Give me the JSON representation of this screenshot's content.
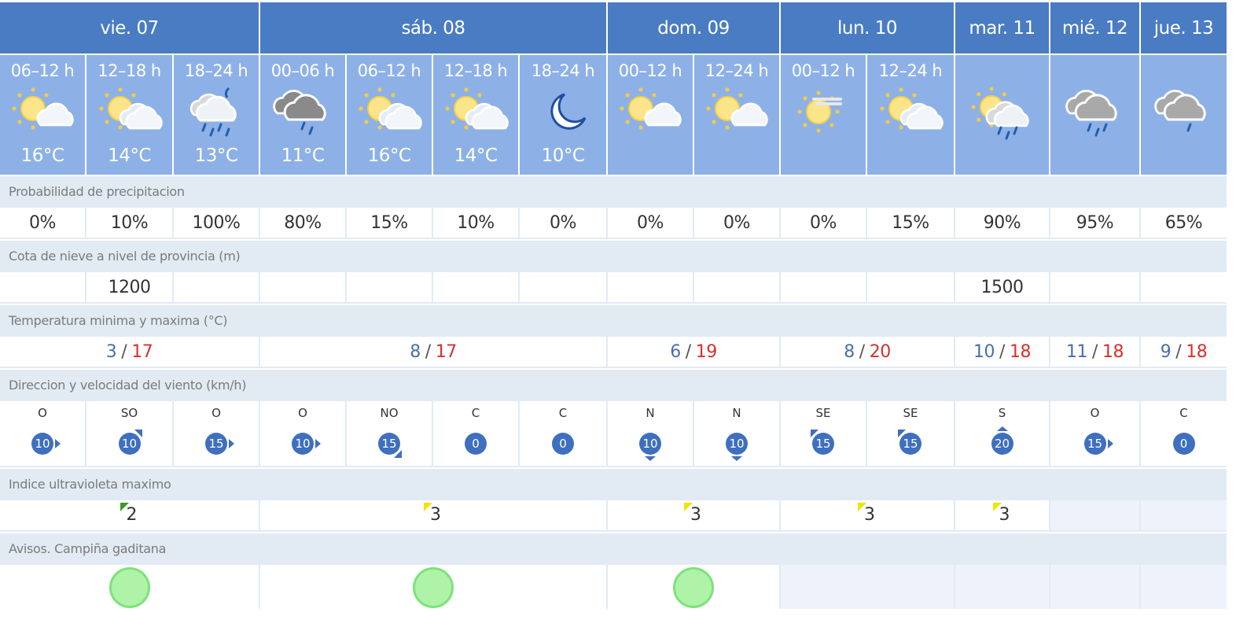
{
  "days": [
    {
      "label": "vie. 07",
      "span": 3,
      "tmin": "3",
      "tmax": "17",
      "uv": "2",
      "uv_color": "#3a9a2a",
      "aviso": true
    },
    {
      "label": "sáb. 08",
      "span": 4,
      "tmin": "8",
      "tmax": "17",
      "uv": "3",
      "uv_color": "#f0e400",
      "aviso": true
    },
    {
      "label": "dom. 09",
      "span": 2,
      "tmin": "6",
      "tmax": "19",
      "uv": "3",
      "uv_color": "#f0e400",
      "aviso": true
    },
    {
      "label": "lun. 10",
      "span": 2,
      "tmin": "8",
      "tmax": "20",
      "uv": "3",
      "uv_color": "#f0e400",
      "aviso": false
    },
    {
      "label": "mar. 11",
      "span": 1,
      "tmin": "10",
      "tmax": "18",
      "uv": "3",
      "uv_color": "#f0e400",
      "aviso": false
    },
    {
      "label": "mié. 12",
      "span": 1,
      "tmin": "11",
      "tmax": "18",
      "uv": null,
      "aviso": false
    },
    {
      "label": "jue. 13",
      "span": 1,
      "tmin": "9",
      "tmax": "18",
      "uv": null,
      "aviso": false
    }
  ],
  "periods": [
    {
      "time": "06–12 h",
      "icon": "sun-cloud",
      "temp": "16°C",
      "precip": "0%",
      "snow": "",
      "wind_dir": "O",
      "wind_speed": "10"
    },
    {
      "time": "12–18 h",
      "icon": "sun-clouds",
      "temp": "14°C",
      "precip": "10%",
      "snow": "1200",
      "wind_dir": "SO",
      "wind_speed": "10"
    },
    {
      "time": "18–24 h",
      "icon": "night-rain-storm",
      "temp": "13°C",
      "precip": "100%",
      "snow": "",
      "wind_dir": "O",
      "wind_speed": "15"
    },
    {
      "time": "00–06 h",
      "icon": "dark-cloud-rain",
      "temp": "11°C",
      "precip": "80%",
      "snow": "",
      "wind_dir": "O",
      "wind_speed": "10"
    },
    {
      "time": "06–12 h",
      "icon": "sun-clouds",
      "temp": "16°C",
      "precip": "15%",
      "snow": "",
      "wind_dir": "NO",
      "wind_speed": "15"
    },
    {
      "time": "12–18 h",
      "icon": "sun-clouds",
      "temp": "14°C",
      "precip": "10%",
      "snow": "",
      "wind_dir": "C",
      "wind_speed": "0"
    },
    {
      "time": "18–24 h",
      "icon": "moon",
      "temp": "10°C",
      "precip": "0%",
      "snow": "",
      "wind_dir": "C",
      "wind_speed": "0"
    },
    {
      "time": "00–12 h",
      "icon": "sun-cloud",
      "temp": "",
      "precip": "0%",
      "snow": "",
      "wind_dir": "N",
      "wind_speed": "10"
    },
    {
      "time": "12–24 h",
      "icon": "sun-cloud",
      "temp": "",
      "precip": "0%",
      "snow": "",
      "wind_dir": "N",
      "wind_speed": "10"
    },
    {
      "time": "00–12 h",
      "icon": "sun-haze",
      "temp": "",
      "precip": "0%",
      "snow": "",
      "wind_dir": "SE",
      "wind_speed": "15"
    },
    {
      "time": "12–24 h",
      "icon": "sun-clouds",
      "temp": "",
      "precip": "15%",
      "snow": "",
      "wind_dir": "SE",
      "wind_speed": "15"
    },
    {
      "time": "",
      "icon": "sun-rain",
      "temp": "",
      "precip": "90%",
      "snow": "1500",
      "wind_dir": "S",
      "wind_speed": "20"
    },
    {
      "time": "",
      "icon": "cloud-rain",
      "temp": "",
      "precip": "95%",
      "snow": "",
      "wind_dir": "O",
      "wind_speed": "15"
    },
    {
      "time": "",
      "icon": "cloud-rain-light",
      "temp": "",
      "precip": "65%",
      "snow": "",
      "wind_dir": "C",
      "wind_speed": "0"
    }
  ],
  "labels": {
    "precip": "Probabilidad de precipitacion",
    "snow": "Cota de nieve a nivel de provincia (m)",
    "temp": "Temperatura minima y maxima (°C)",
    "wind": "Direccion y velocidad del viento (km/h)",
    "uv": "Indice ultravioleta maximo",
    "avisos": "Avisos. Campiña gaditana"
  },
  "colors": {
    "header": "#4a7cc4",
    "subheader": "#8db1e7",
    "wind": "#3f6fbf",
    "max": "#d9302c",
    "min": "#4a6fa8",
    "aviso_green": "#aef3a8"
  }
}
